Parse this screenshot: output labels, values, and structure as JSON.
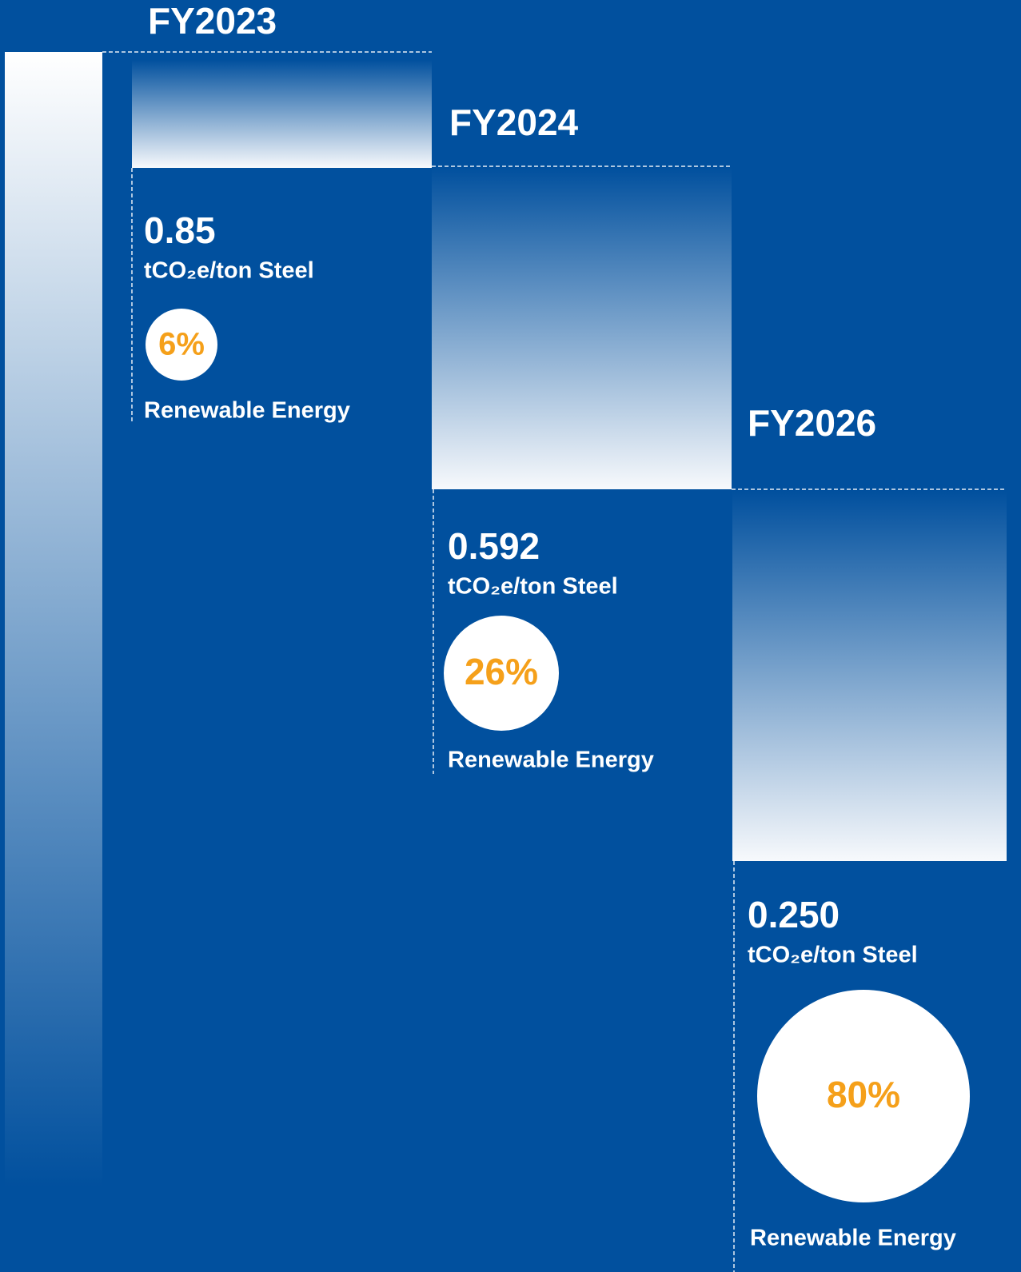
{
  "steps": [
    {
      "year": "FY2023",
      "value": "0.85",
      "unit": "tCO₂e/ton Steel",
      "renewable": "6%",
      "renewable_label": "Renewable Energy"
    },
    {
      "year": "FY2024",
      "value": "0.592",
      "unit": "tCO₂e/ton Steel",
      "renewable": "26%",
      "renewable_label": "Renewable Energy"
    },
    {
      "year": "FY2026",
      "value": "0.250",
      "unit": "tCO₂e/ton Steel",
      "renewable": "80%",
      "renewable_label": "Renewable Energy"
    }
  ]
}
